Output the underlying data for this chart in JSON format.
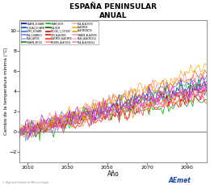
{
  "title": "ESPAÑA PENINSULAR",
  "subtitle": "ANUAL",
  "xlabel": "Año",
  "ylabel": "Cambio de la temperatura mínima (°C)",
  "xlim": [
    2006,
    2100
  ],
  "ylim": [
    -3,
    11
  ],
  "yticks": [
    -2,
    0,
    2,
    4,
    6,
    8,
    10
  ],
  "xticks": [
    2010,
    2030,
    2050,
    2070,
    2090
  ],
  "background_color": "#ffffff",
  "hline_y": 0,
  "hline_color": "#888888",
  "num_series": 18,
  "seed": 42,
  "footer_text": "© Agencia Estatal de Meteorología",
  "legend_cols": 3,
  "line_colors": [
    "#0000cc",
    "#0044cc",
    "#3366dd",
    "#6688ee",
    "#009900",
    "#00bb00",
    "#cc0000",
    "#ee1100",
    "#ff3300",
    "#dd6600",
    "#ffaa00",
    "#ccaa00",
    "#ff8888",
    "#ffaaaa",
    "#ee5566",
    "#dd99cc",
    "#ee44ee",
    "#aa22aa"
  ],
  "legend_entries": [
    [
      "HINAM4_ECHAME",
      "#0000cc"
    ],
    [
      "HI_RCA4_ECHAME",
      "#0044cc"
    ],
    [
      "EURO_ECHAME",
      "#3366dd"
    ],
    [
      "RCA_ICHAME13",
      "#6688ee"
    ],
    [
      "RCA4_AIFIOS",
      "#99aaff"
    ],
    [
      "HINAM4_AIFIOS",
      "#009900"
    ],
    [
      "HINAM_BCM",
      "#00bb00"
    ],
    [
      "RCA_BCM",
      "#005500"
    ],
    [
      "RECLA3_1_COCRES",
      "#cc0000"
    ],
    [
      "CLM_ALACMOS",
      "#ee1100"
    ],
    [
      "ALACMOS_ALACMOS",
      "#ff3300"
    ],
    [
      "PROMES_ALACRIOS",
      "#ff8888"
    ],
    [
      "RCA_ALACMIOS",
      "#ffaaaa"
    ],
    [
      "ALACMIOS",
      "#ffaa00"
    ],
    [
      "ALACMIOSIC16",
      "#ccaa00"
    ],
    [
      "HINAM4_ALACRIOS",
      "#ee99bb"
    ],
    [
      "RCA4_ALACM2014",
      "#ffbbcc"
    ],
    [
      "RCA_ALACM2014",
      "#dd99cc"
    ]
  ]
}
